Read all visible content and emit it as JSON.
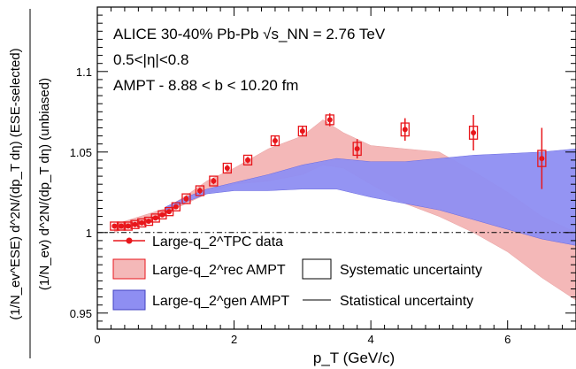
{
  "chart_data": {
    "type": "scatter",
    "xlabel": "p_T (GeV/c)",
    "ylabel_top": "(1/N_ev^ESE) d^2N/(dp_T dη) (ESE-selected)",
    "ylabel_bottom": "(1/N_ev) d^2N/(dp_T dη) (unbiased)",
    "xlim": [
      0,
      7
    ],
    "ylim": [
      0.94,
      1.14
    ],
    "x_ticks": [
      "0",
      "2",
      "4",
      "6"
    ],
    "x_tick_values": [
      0,
      2,
      4,
      6
    ],
    "y_ticks": [
      "0.95",
      "1",
      "1.05",
      "1.1"
    ],
    "y_tick_values": [
      0.95,
      1.0,
      1.05,
      1.1
    ],
    "reference_line": 1.0,
    "annotations": [
      "ALICE 30-40% Pb-Pb √s_NN = 2.76 TeV",
      "0.5<|η|<0.8",
      "AMPT - 8.88 < b < 10.20 fm"
    ],
    "legend": [
      {
        "label": "Large-q_2^TPC data",
        "kind": "marker",
        "color": "#e8161b"
      },
      {
        "label": "Large-q_2^rec AMPT",
        "kind": "band",
        "color": "#f4b8b8"
      },
      {
        "label": "Large-q_2^gen AMPT",
        "kind": "band",
        "color": "#8e8ef2"
      },
      {
        "label": "Systematic uncertainty",
        "kind": "box"
      },
      {
        "label": "Statistical uncertainty",
        "kind": "line"
      }
    ],
    "series": [
      {
        "name": "Large-q_2^TPC data",
        "color": "#e8161b",
        "x": [
          0.25,
          0.35,
          0.45,
          0.55,
          0.65,
          0.75,
          0.85,
          0.95,
          1.05,
          1.15,
          1.3,
          1.5,
          1.7,
          1.9,
          2.2,
          2.6,
          3.0,
          3.4,
          3.8,
          4.5,
          5.5,
          6.5
        ],
        "y": [
          1.004,
          1.004,
          1.004,
          1.005,
          1.006,
          1.007,
          1.009,
          1.011,
          1.013,
          1.016,
          1.021,
          1.026,
          1.032,
          1.04,
          1.045,
          1.057,
          1.063,
          1.07,
          1.052,
          1.064,
          1.062,
          1.046
        ],
        "stat_err": [
          0.001,
          0.001,
          0.001,
          0.001,
          0.001,
          0.001,
          0.001,
          0.001,
          0.001,
          0.001,
          0.002,
          0.002,
          0.002,
          0.002,
          0.002,
          0.003,
          0.003,
          0.004,
          0.006,
          0.007,
          0.011,
          0.019
        ],
        "sys_err": [
          0.0025,
          0.0025,
          0.0025,
          0.0025,
          0.0025,
          0.0025,
          0.0025,
          0.0025,
          0.0025,
          0.0025,
          0.003,
          0.003,
          0.003,
          0.003,
          0.003,
          0.003,
          0.003,
          0.003,
          0.004,
          0.004,
          0.004,
          0.005
        ]
      }
    ],
    "bands": [
      {
        "name": "Large-q_2^rec AMPT",
        "color": "#f4b8b8",
        "x": [
          0.25,
          1.0,
          1.3,
          1.6,
          2.0,
          2.5,
          3.0,
          3.3,
          3.6,
          4.0,
          4.5,
          5.0,
          5.5,
          6.0,
          6.5,
          7.0
        ],
        "low": [
          1.0,
          1.012,
          1.018,
          1.024,
          1.03,
          1.032,
          1.036,
          1.042,
          1.04,
          1.03,
          1.018,
          1.01,
          1.0,
          0.988,
          0.972,
          0.958
        ],
        "high": [
          1.005,
          1.015,
          1.023,
          1.032,
          1.04,
          1.052,
          1.06,
          1.07,
          1.062,
          1.054,
          1.052,
          1.05,
          1.038,
          1.025,
          1.01,
          1.0
        ]
      },
      {
        "name": "Large-q_2^gen AMPT",
        "color": "#8e8ef2",
        "x": [
          1.0,
          1.3,
          1.6,
          2.0,
          2.5,
          3.0,
          3.5,
          4.0,
          4.5,
          5.0,
          5.5,
          6.0,
          6.5,
          7.0
        ],
        "low": [
          1.014,
          1.019,
          1.024,
          1.026,
          1.026,
          1.027,
          1.027,
          1.022,
          1.018,
          1.014,
          1.008,
          1.002,
          0.996,
          0.992
        ],
        "high": [
          1.016,
          1.022,
          1.027,
          1.031,
          1.036,
          1.042,
          1.046,
          1.044,
          1.044,
          1.046,
          1.048,
          1.049,
          1.05,
          1.052
        ]
      }
    ]
  }
}
